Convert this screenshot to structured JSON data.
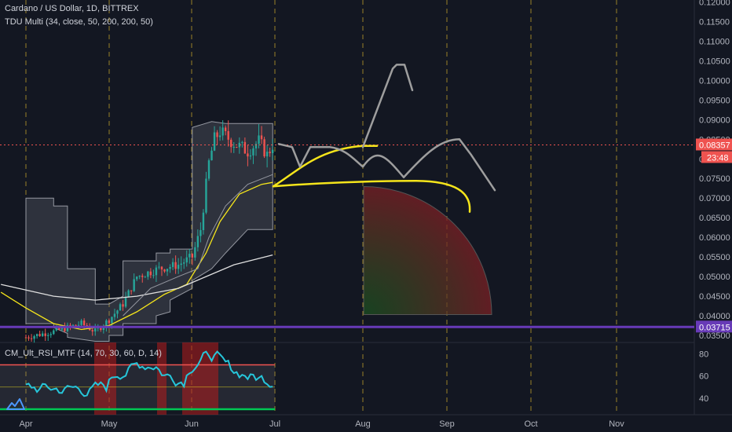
{
  "header": {
    "title": "Cardano / US Dollar, 1D, BITTREX",
    "indicator1": "TDU Multi (34, close, 50, 200, 200, 50)",
    "indicator2": "CM_Ult_RSI_MTF (14, 70, 30, 60, D, 14)"
  },
  "colors": {
    "background": "#131722",
    "up_candle": "#26a69a",
    "down_candle": "#ef5350",
    "support_line": "#673ab7",
    "drawing_yellow": "#f5e51b",
    "drawing_gray": "#9e9e9e"
  },
  "chart_data": [
    {
      "type": "candlestick",
      "title": "Cardano / US Dollar, 1D, BITTREX",
      "xlabel": "",
      "ylabel": "",
      "x_ticks": [
        "Apr",
        "May",
        "Jun",
        "Jul",
        "Aug",
        "Sep",
        "Oct",
        "Nov"
      ],
      "y_ticks": [
        "0.12000",
        "0.11500",
        "0.11000",
        "0.10500",
        "0.10000",
        "0.09500",
        "0.09000",
        "0.08500",
        "0.08000",
        "0.07500",
        "0.07000",
        "0.06500",
        "0.06000",
        "0.05500",
        "0.05000",
        "0.04500",
        "0.04000",
        "0.03500"
      ],
      "ylim": [
        0.0332,
        0.1205
      ],
      "grid": "vertical dashed",
      "price_label": "0.08357",
      "countdown_label": "23:48",
      "support_label": "0.03715",
      "support_value": 0.03715,
      "last_price": 0.08357,
      "candles_by_month": [
        {
          "month": "Apr",
          "start": 0.034,
          "end": 0.0375,
          "low": 0.0335,
          "high": 0.04
        },
        {
          "month": "May",
          "start": 0.0375,
          "end": 0.053,
          "low": 0.037,
          "high": 0.056
        },
        {
          "month": "Jun",
          "start": 0.053,
          "end": 0.087,
          "low": 0.052,
          "high": 0.09
        },
        {
          "month": "Jun-late",
          "start": 0.087,
          "end": 0.0836,
          "low": 0.074,
          "high": 0.09
        }
      ]
    },
    {
      "type": "line",
      "title": "CM_Ult_RSI_MTF (14, 70, 30, 60, D, 14)",
      "y_ticks": [
        "80",
        "60",
        "40"
      ],
      "ylim": [
        25,
        86
      ],
      "overbought": 70,
      "oversold": 30
    }
  ]
}
